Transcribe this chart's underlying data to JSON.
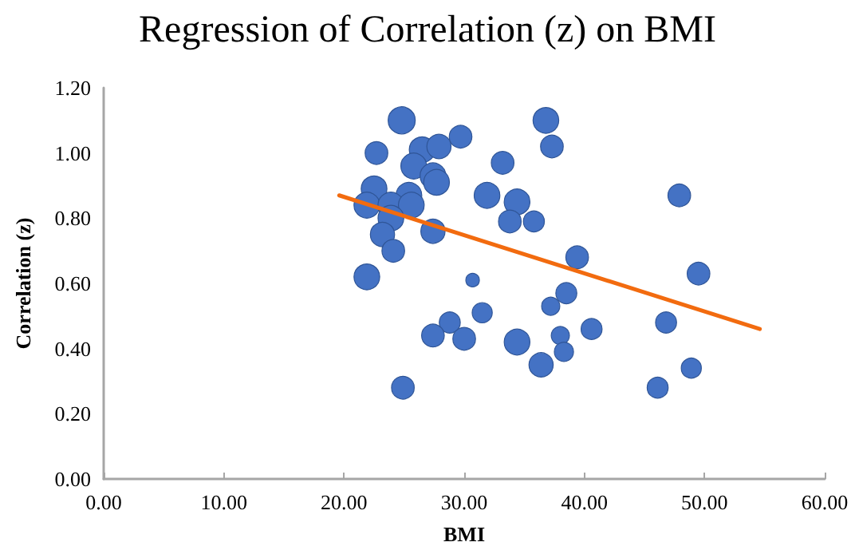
{
  "chart_data": {
    "type": "bubble",
    "title": "Regression of Correlation (z) on BMI",
    "xlabel": "BMI",
    "ylabel": "Correlation (z)",
    "xlim": [
      0,
      60
    ],
    "xticks": [
      {
        "value": 0,
        "label": "0.00"
      },
      {
        "value": 10,
        "label": "10.00"
      },
      {
        "value": 20,
        "label": "20.00"
      },
      {
        "value": 30,
        "label": "30.00"
      },
      {
        "value": 40,
        "label": "40.00"
      },
      {
        "value": 50,
        "label": "50.00"
      },
      {
        "value": 60,
        "label": "60.00"
      }
    ],
    "ylim": [
      0,
      1.2
    ],
    "yticks": [
      {
        "value": 0,
        "label": "0.00"
      },
      {
        "value": 0.2,
        "label": "0.20"
      },
      {
        "value": 0.4,
        "label": "0.40"
      },
      {
        "value": 0.6,
        "label": "0.60"
      },
      {
        "value": 0.8,
        "label": "0.80"
      },
      {
        "value": 1,
        "label": "1.00"
      },
      {
        "value": 1.2,
        "label": "1.20"
      }
    ],
    "grid": false,
    "series": [
      {
        "color": "#4472c4",
        "x": [
          24.8,
          22.7,
          26.5,
          27.9,
          29.7,
          25.8,
          27.4,
          27.7,
          22.5,
          25.4,
          21.9,
          23.9,
          25.6,
          23.9,
          23.2,
          24.1,
          27.4,
          21.9,
          33.2,
          36.8,
          37.3,
          31.9,
          34.4,
          33.8,
          35.8,
          39.4,
          30.7,
          38.5,
          37.2,
          31.5,
          40.6,
          28.8,
          27.4,
          30.0,
          34.4,
          38.0,
          38.3,
          36.4,
          24.9,
          47.9,
          49.5,
          46.8,
          48.9,
          46.1
        ],
        "values": [
          1.1,
          1.0,
          1.01,
          1.02,
          1.05,
          0.96,
          0.93,
          0.91,
          0.89,
          0.87,
          0.84,
          0.84,
          0.84,
          0.8,
          0.75,
          0.7,
          0.76,
          0.62,
          0.97,
          1.1,
          1.02,
          0.87,
          0.85,
          0.79,
          0.79,
          0.68,
          0.61,
          0.57,
          0.53,
          0.51,
          0.46,
          0.48,
          0.44,
          0.43,
          0.42,
          0.44,
          0.39,
          0.35,
          0.28,
          0.87,
          0.63,
          0.48,
          0.34,
          0.28
        ],
        "sizes": [
          1,
          0.7,
          0.9,
          0.8,
          0.7,
          0.9,
          0.9,
          0.9,
          0.9,
          0.9,
          0.9,
          0.9,
          0.9,
          0.9,
          0.8,
          0.7,
          0.8,
          0.9,
          0.7,
          0.9,
          0.7,
          0.9,
          0.9,
          0.7,
          0.6,
          0.7,
          0.25,
          0.6,
          0.45,
          0.55,
          0.6,
          0.6,
          0.7,
          0.7,
          0.9,
          0.45,
          0.5,
          0.8,
          0.7,
          0.7,
          0.7,
          0.6,
          0.55,
          0.6
        ]
      },
      {
        "type": "line",
        "color": "#f26b0f",
        "x": [
          19.6,
          54.6
        ],
        "values": [
          0.87,
          0.46
        ],
        "marker": "none"
      }
    ]
  }
}
